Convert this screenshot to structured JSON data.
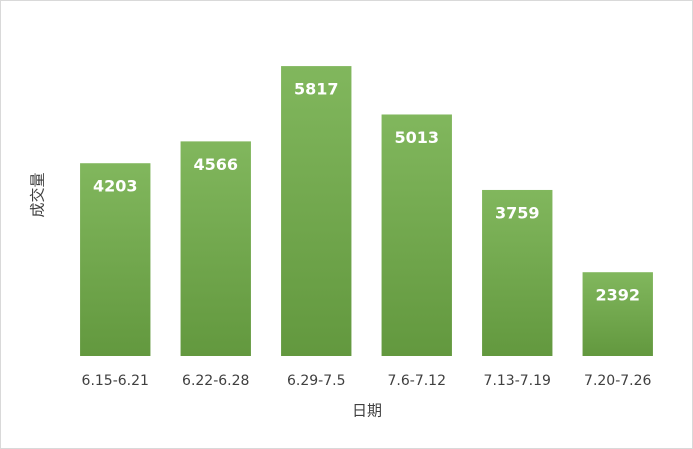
{
  "chart_data": {
    "type": "bar",
    "x_label": "日期",
    "y_label": "成交量",
    "categories": [
      "6.15-6.21",
      "6.22-6.28",
      "6.29-7.5",
      "7.6-7.12",
      "7.13-7.19",
      "7.20-7.26"
    ],
    "values": [
      4203,
      4566,
      5817,
      5013,
      3759,
      2392
    ],
    "color": "#70ad47",
    "ylim": [
      1000,
      6500
    ]
  }
}
